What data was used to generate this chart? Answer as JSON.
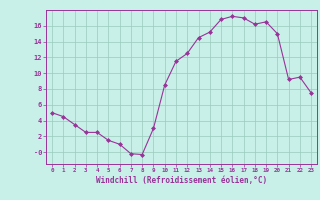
{
  "xlabel": "Windchill (Refroidissement éolien,°C)",
  "x": [
    0,
    1,
    2,
    3,
    4,
    5,
    6,
    7,
    8,
    9,
    10,
    11,
    12,
    13,
    14,
    15,
    16,
    17,
    18,
    19,
    20,
    21,
    22,
    23
  ],
  "y": [
    5.0,
    4.5,
    3.5,
    2.5,
    2.5,
    1.5,
    1.0,
    -0.2,
    -0.3,
    3.0,
    8.5,
    11.5,
    12.5,
    14.5,
    15.2,
    16.8,
    17.2,
    17.0,
    16.2,
    16.5,
    15.0,
    9.2,
    9.5,
    7.5
  ],
  "line_color": "#993399",
  "marker": "D",
  "marker_size": 2.0,
  "background_color": "#c8f0e8",
  "plot_bg_color": "#c8f0e8",
  "grid_color": "#99ccbb",
  "tick_color": "#993399",
  "label_color": "#993399",
  "ylim": [
    -1.5,
    18.0
  ],
  "xlim": [
    -0.5,
    23.5
  ],
  "yticks": [
    0,
    2,
    4,
    6,
    8,
    10,
    12,
    14,
    16
  ],
  "ytick_labels": [
    "-0",
    "2",
    "4",
    "6",
    "8",
    "10",
    "12",
    "14",
    "16"
  ],
  "xticks": [
    0,
    1,
    2,
    3,
    4,
    5,
    6,
    7,
    8,
    9,
    10,
    11,
    12,
    13,
    14,
    15,
    16,
    17,
    18,
    19,
    20,
    21,
    22,
    23
  ]
}
